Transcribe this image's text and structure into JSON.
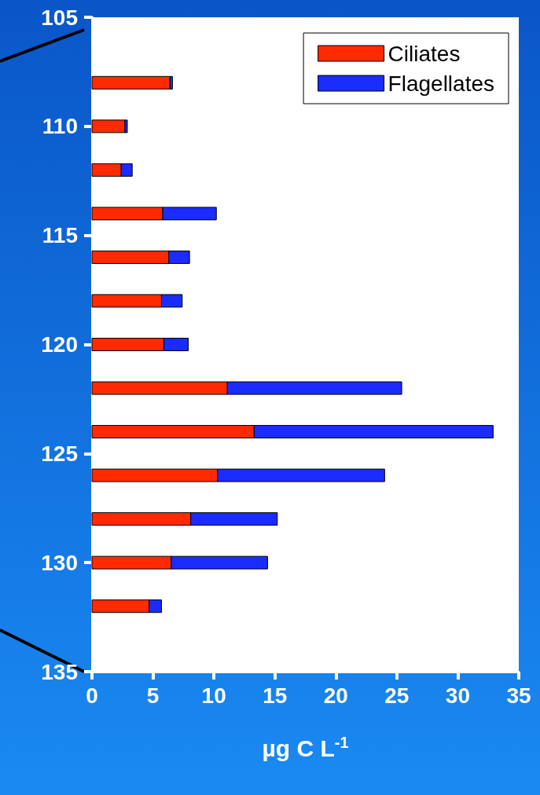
{
  "chart_data": {
    "type": "bar",
    "orientation": "horizontal",
    "stacked": true,
    "xlabel": "µg C L$^{-1}$",
    "x": [
      108,
      110,
      112,
      114,
      116,
      118,
      120,
      122,
      124,
      126,
      128,
      130,
      132
    ],
    "series": [
      {
        "name": "Ciliates",
        "color": "#ff2a00",
        "values": [
          6.4,
          2.7,
          2.4,
          5.8,
          6.3,
          5.7,
          5.9,
          11.1,
          13.3,
          10.3,
          8.1,
          6.5,
          4.7
        ]
      },
      {
        "name": "Flagellates",
        "color": "#1a2cff",
        "values": [
          0.2,
          0.2,
          0.9,
          4.4,
          1.7,
          1.7,
          2.0,
          14.3,
          19.6,
          13.7,
          7.1,
          7.9,
          1.0
        ]
      }
    ],
    "xlim": [
      0,
      35
    ],
    "xticks": [
      0,
      5,
      10,
      15,
      20,
      25,
      30,
      35
    ],
    "ylim": [
      135,
      105
    ],
    "yticks": [
      105,
      110,
      115,
      120,
      125,
      130,
      135
    ],
    "grid": false,
    "legend": "top right"
  }
}
